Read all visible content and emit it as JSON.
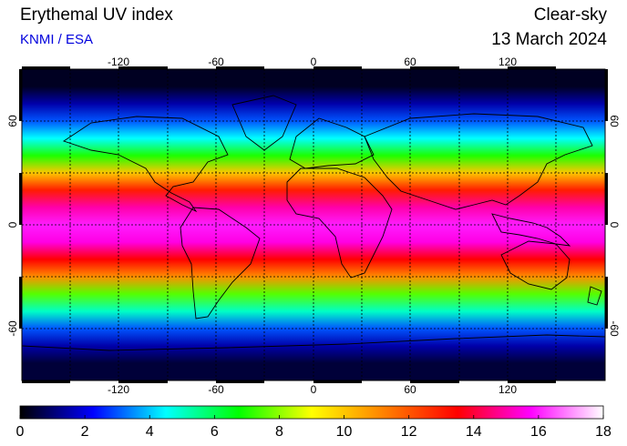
{
  "header": {
    "title": "Erythemal UV index",
    "source": "KNMI / ESA",
    "mode": "Clear-sky",
    "date": "13 March 2024"
  },
  "map": {
    "lon_ticks": [
      "-120",
      "-60",
      "0",
      "60",
      "120"
    ],
    "lat_ticks": [
      "60",
      "0",
      "-60"
    ],
    "lat_ticks_right": [
      "60",
      "0",
      "-60"
    ]
  },
  "colorbar": {
    "labels": [
      "0",
      "2",
      "4",
      "6",
      "8",
      "10",
      "12",
      "14",
      "16",
      "18"
    ],
    "stops": [
      "#000000",
      "#0000ff",
      "#00ffff",
      "#00ff00",
      "#ffff00",
      "#ff8000",
      "#ff0000",
      "#ff00ff",
      "#ffffff"
    ]
  },
  "chart_data": {
    "type": "heatmap",
    "value_range": [
      0,
      18
    ],
    "lon_range": [
      -180,
      180
    ],
    "lat_range": [
      -90,
      90
    ],
    "zonal_profile": [
      {
        "lat": 80,
        "uv": 0.3
      },
      {
        "lat": 70,
        "uv": 1.5
      },
      {
        "lat": 60,
        "uv": 3
      },
      {
        "lat": 50,
        "uv": 4.5
      },
      {
        "lat": 40,
        "uv": 7
      },
      {
        "lat": 30,
        "uv": 10
      },
      {
        "lat": 20,
        "uv": 13
      },
      {
        "lat": 10,
        "uv": 15
      },
      {
        "lat": 0,
        "uv": 16
      },
      {
        "lat": -10,
        "uv": 15.5
      },
      {
        "lat": -20,
        "uv": 13.5
      },
      {
        "lat": -30,
        "uv": 11
      },
      {
        "lat": -40,
        "uv": 7.5
      },
      {
        "lat": -50,
        "uv": 5
      },
      {
        "lat": -60,
        "uv": 3
      },
      {
        "lat": -70,
        "uv": 1.5
      },
      {
        "lat": -80,
        "uv": 0.5
      }
    ]
  }
}
